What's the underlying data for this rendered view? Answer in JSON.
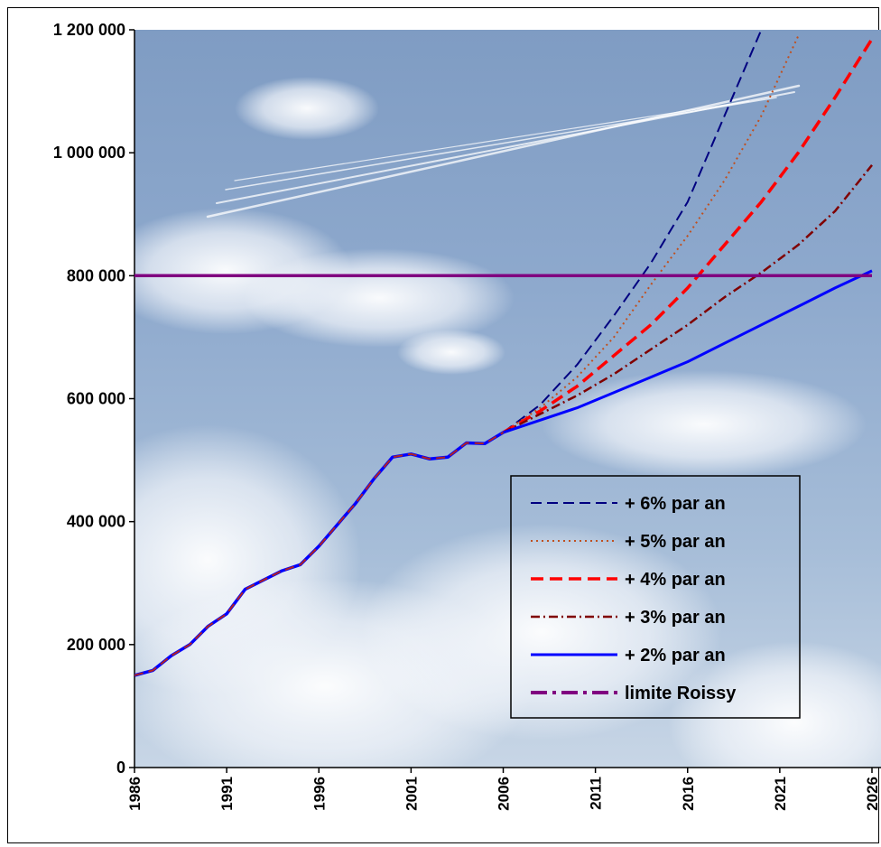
{
  "chart_data": {
    "type": "line",
    "title": "",
    "xlabel": "",
    "ylabel": "",
    "xlim": [
      1986,
      2026
    ],
    "ylim": [
      0,
      1200000
    ],
    "x_ticks": [
      "1986",
      "1991",
      "1996",
      "2001",
      "2006",
      "2011",
      "2016",
      "2021",
      "2026"
    ],
    "y_ticks": [
      "0",
      "200 000",
      "400 000",
      "600 000",
      "800 000",
      "1 000 000",
      "1 200 000"
    ],
    "legend_position": "right-middle",
    "background": "sky photograph with clouds and contrails",
    "historical": {
      "x": [
        1986,
        1987,
        1988,
        1989,
        1990,
        1991,
        1992,
        1993,
        1994,
        1995,
        1996,
        1997,
        1998,
        1999,
        2000,
        2001,
        2002,
        2003,
        2004,
        2005,
        2006
      ],
      "y": [
        150000,
        158000,
        182000,
        200000,
        230000,
        250000,
        290000,
        305000,
        320000,
        330000,
        360000,
        395000,
        430000,
        470000,
        505000,
        510000,
        502000,
        505000,
        528000,
        527000,
        545000
      ]
    },
    "series": [
      {
        "name": "+ 6% par an",
        "color": "#000080",
        "dash": "long-dash",
        "rate": 0.06,
        "x": [
          2006,
          2008,
          2010,
          2012,
          2014,
          2016,
          2018,
          2020
        ],
        "y": [
          545000,
          590000,
          655000,
          735000,
          820000,
          920000,
          1060000,
          1200000
        ]
      },
      {
        "name": "+ 5% par an",
        "color": "#c0501f",
        "dash": "dot",
        "rate": 0.05,
        "x": [
          2006,
          2008,
          2010,
          2012,
          2014,
          2016,
          2018,
          2020,
          2022
        ],
        "y": [
          545000,
          585000,
          635000,
          700000,
          785000,
          865000,
          955000,
          1060000,
          1190000
        ]
      },
      {
        "name": "+ 4% par an",
        "color": "#ff0000",
        "dash": "dash",
        "rate": 0.04,
        "x": [
          2006,
          2008,
          2010,
          2012,
          2014,
          2016,
          2018,
          2020,
          2022,
          2024,
          2026
        ],
        "y": [
          545000,
          580000,
          620000,
          670000,
          720000,
          780000,
          850000,
          920000,
          1000000,
          1090000,
          1185000
        ]
      },
      {
        "name": "+ 3% par an",
        "color": "#800000",
        "dash": "dash-dot",
        "rate": 0.03,
        "x": [
          2006,
          2008,
          2010,
          2012,
          2014,
          2016,
          2018,
          2020,
          2022,
          2024,
          2026
        ],
        "y": [
          545000,
          575000,
          605000,
          640000,
          680000,
          720000,
          765000,
          805000,
          850000,
          905000,
          980000
        ]
      },
      {
        "name": "+ 2% par an",
        "color": "#0000ff",
        "dash": "solid",
        "rate": 0.02,
        "x": [
          2006,
          2008,
          2010,
          2012,
          2014,
          2016,
          2018,
          2020,
          2022,
          2024,
          2026
        ],
        "y": [
          545000,
          565000,
          585000,
          610000,
          635000,
          660000,
          690000,
          720000,
          750000,
          780000,
          808000
        ]
      },
      {
        "name": "limite Roissy",
        "color": "#800080",
        "dash": "solid",
        "constant": 800000,
        "x": [
          1986,
          2026
        ],
        "y": [
          800000,
          800000
        ]
      }
    ]
  }
}
